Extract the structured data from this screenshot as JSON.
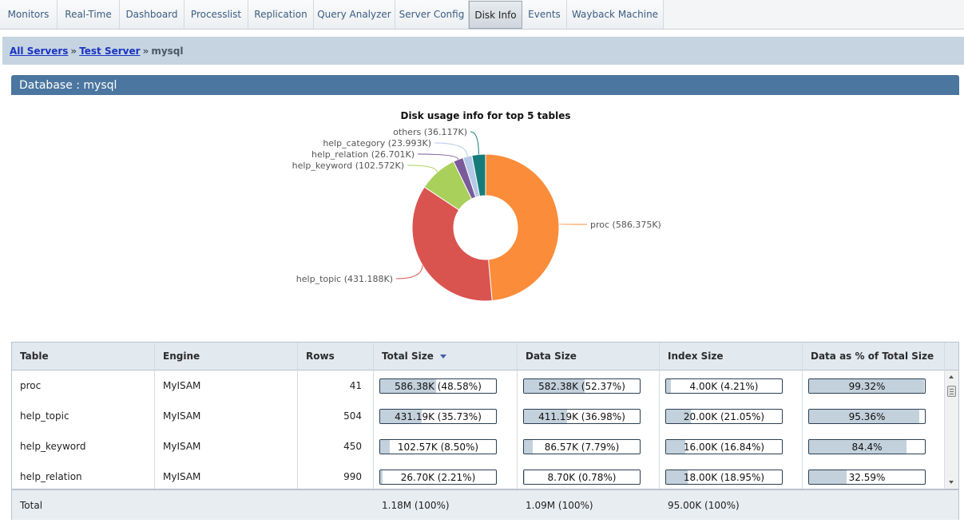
{
  "tabs": [
    {
      "label": "Monitors",
      "active": false
    },
    {
      "label": "Real-Time",
      "active": false
    },
    {
      "label": "Dashboard",
      "active": false
    },
    {
      "label": "Processlist",
      "active": false
    },
    {
      "label": "Replication",
      "active": false
    },
    {
      "label": "Query Analyzer",
      "active": false
    },
    {
      "label": "Server Config",
      "active": false
    },
    {
      "label": "Disk Info",
      "active": true
    },
    {
      "label": "Events",
      "active": false
    },
    {
      "label": "Wayback Machine",
      "active": false
    }
  ],
  "breadcrumb": {
    "all_servers": "All Servers",
    "sep1": "»",
    "server": "Test Server",
    "sep2": "»",
    "database": "mysql"
  },
  "database_header": "Database : mysql",
  "chart_data": {
    "type": "pie",
    "donut": true,
    "title": "Disk usage info for top 5 tables",
    "slices": [
      {
        "name": "proc",
        "label": "proc (586.375K)",
        "value": 586.375,
        "color": "#fa8c3a"
      },
      {
        "name": "help_topic",
        "label": "help_topic (431.188K)",
        "value": 431.188,
        "color": "#d9534f"
      },
      {
        "name": "help_keyword",
        "label": "help_keyword (102.572K)",
        "value": 102.572,
        "color": "#a8d05a"
      },
      {
        "name": "help_relation",
        "label": "help_relation (26.701K)",
        "value": 26.701,
        "color": "#7a5a9a"
      },
      {
        "name": "help_category",
        "label": "help_category (23.993K)",
        "value": 23.993,
        "color": "#b4c9e6"
      },
      {
        "name": "others",
        "label": "others (36.117K)",
        "value": 36.117,
        "color": "#167c79"
      }
    ]
  },
  "table": {
    "columns": [
      "Table",
      "Engine",
      "Rows",
      "Total Size",
      "Data Size",
      "Index Size",
      "Data as % of Total Size"
    ],
    "sorted_column": "Total Size",
    "rows": [
      {
        "table": "proc",
        "engine": "MyISAM",
        "rows": "41",
        "total": {
          "label": "586.38K (48.58%)",
          "pct": 48.58
        },
        "data": {
          "label": "582.38K (52.37%)",
          "pct": 52.37
        },
        "index": {
          "label": "4.00K (4.21%)",
          "pct": 4.21
        },
        "data_pct": {
          "label": "99.32%",
          "pct": 99.32
        }
      },
      {
        "table": "help_topic",
        "engine": "MyISAM",
        "rows": "504",
        "total": {
          "label": "431.19K (35.73%)",
          "pct": 35.73
        },
        "data": {
          "label": "411.19K (36.98%)",
          "pct": 36.98
        },
        "index": {
          "label": "20.00K (21.05%)",
          "pct": 21.05
        },
        "data_pct": {
          "label": "95.36%",
          "pct": 95.36
        }
      },
      {
        "table": "help_keyword",
        "engine": "MyISAM",
        "rows": "450",
        "total": {
          "label": "102.57K (8.50%)",
          "pct": 8.5
        },
        "data": {
          "label": "86.57K (7.79%)",
          "pct": 7.79
        },
        "index": {
          "label": "16.00K (16.84%)",
          "pct": 16.84
        },
        "data_pct": {
          "label": "84.4%",
          "pct": 84.4
        }
      },
      {
        "table": "help_relation",
        "engine": "MyISAM",
        "rows": "990",
        "total": {
          "label": "26.70K (2.21%)",
          "pct": 2.21
        },
        "data": {
          "label": "8.70K (0.78%)",
          "pct": 0.78
        },
        "index": {
          "label": "18.00K (18.95%)",
          "pct": 18.95
        },
        "data_pct": {
          "label": "32.59%",
          "pct": 32.59
        }
      }
    ],
    "footer": {
      "label": "Total",
      "total": "1.18M (100%)",
      "data": "1.09M (100%)",
      "index": "95.00K (100%)"
    }
  }
}
